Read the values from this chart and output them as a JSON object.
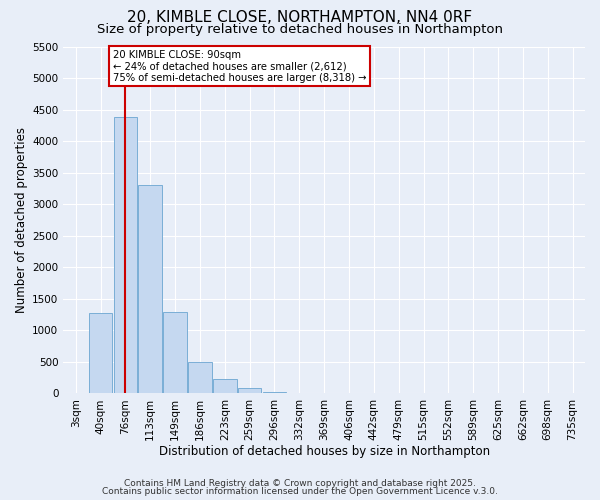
{
  "title": "20, KIMBLE CLOSE, NORTHAMPTON, NN4 0RF",
  "subtitle": "Size of property relative to detached houses in Northampton",
  "xlabel": "Distribution of detached houses by size in Northampton",
  "ylabel": "Number of detached properties",
  "bar_labels": [
    "3sqm",
    "40sqm",
    "76sqm",
    "113sqm",
    "149sqm",
    "186sqm",
    "223sqm",
    "259sqm",
    "296sqm",
    "332sqm",
    "369sqm",
    "406sqm",
    "442sqm",
    "479sqm",
    "515sqm",
    "552sqm",
    "589sqm",
    "625sqm",
    "662sqm",
    "698sqm",
    "735sqm"
  ],
  "bar_values": [
    0,
    1270,
    4380,
    3300,
    1290,
    500,
    230,
    80,
    20,
    5,
    2,
    0,
    0,
    0,
    0,
    0,
    0,
    0,
    0,
    0,
    0
  ],
  "bar_color": "#c5d8f0",
  "bar_edge_color": "#7aaed6",
  "vline_x_idx": 2,
  "vline_color": "#cc0000",
  "annotation_text": "20 KIMBLE CLOSE: 90sqm\n← 24% of detached houses are smaller (2,612)\n75% of semi-detached houses are larger (8,318) →",
  "annotation_box_color": "#ffffff",
  "annotation_box_edge": "#cc0000",
  "ylim": [
    0,
    5500
  ],
  "yticks": [
    0,
    500,
    1000,
    1500,
    2000,
    2500,
    3000,
    3500,
    4000,
    4500,
    5000,
    5500
  ],
  "footer1": "Contains HM Land Registry data © Crown copyright and database right 2025.",
  "footer2": "Contains public sector information licensed under the Open Government Licence v.3.0.",
  "background_color": "#e8eef8",
  "grid_color": "#ffffff",
  "title_fontsize": 11,
  "subtitle_fontsize": 9.5,
  "axis_label_fontsize": 8.5,
  "tick_fontsize": 7.5,
  "footer_fontsize": 6.5
}
